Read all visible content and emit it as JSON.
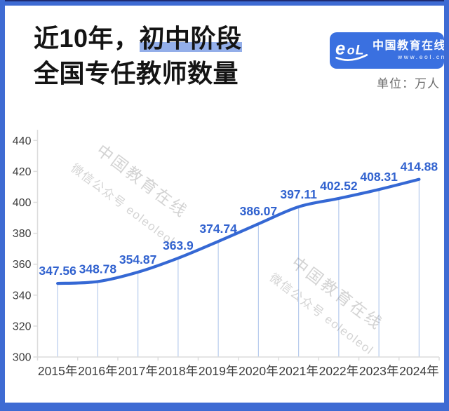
{
  "header": {
    "title_line1_prefix": "近10年，",
    "title_line1_highlight": "初中阶段",
    "title_line2": "全国专任教师数量",
    "unit_label": "单位：万人"
  },
  "logo": {
    "brand": "中国教育在线",
    "url": "www.eol.cn",
    "mark": "eol"
  },
  "watermarks": [
    {
      "line1": "中国教育在线",
      "line2": "微信公众号 eoleoleol"
    },
    {
      "line1": "中国教育在线",
      "line2": "微信公众号 eoleoleol"
    }
  ],
  "colors": {
    "frame_border": "#3e6bd3",
    "frame_border_top_accent": "#1e2a70",
    "logo_badge": "#3a70e0",
    "title_highlight": "#93aee9",
    "line": "#3568d4",
    "value_label": "#3162cf",
    "drop_line": "#b7cbed",
    "axis": "#dcdcdc",
    "axis_label": "#3c3c3c",
    "unit_text": "#6e6e6e"
  },
  "chart_data": {
    "type": "line",
    "title": "近10年，初中阶段全国专任教师数量",
    "unit": "万人",
    "categories": [
      "2015年",
      "2016年",
      "2017年",
      "2018年",
      "2019年",
      "2020年",
      "2021年",
      "2022年",
      "2023年",
      "2024年"
    ],
    "series": [
      {
        "name": "全国专任教师数量",
        "values": [
          347.56,
          348.78,
          354.87,
          363.9,
          374.74,
          386.07,
          397.11,
          402.52,
          408.31,
          414.88
        ]
      }
    ],
    "ylim": [
      300,
      440
    ],
    "ytick_step": 20,
    "yticks": [
      300,
      320,
      340,
      360,
      380,
      400,
      420,
      440
    ],
    "smooth": true,
    "grid": false,
    "droplines": true,
    "data_labels": true,
    "legend": "none"
  }
}
